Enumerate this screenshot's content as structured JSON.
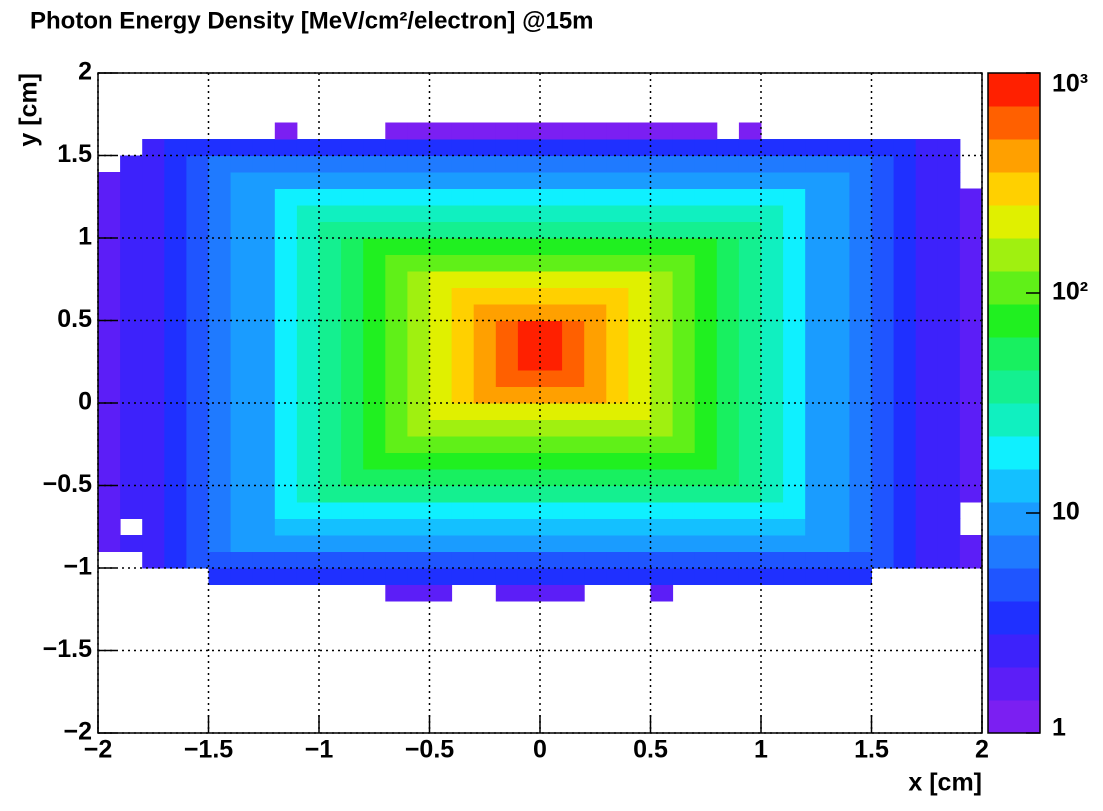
{
  "chart_data": {
    "type": "heatmap",
    "title": "Photon Energy Density [MeV/cm²/electron] @15m",
    "x_label": "x [cm]",
    "y_label": "y [cm]",
    "xlim": [
      -2,
      2
    ],
    "ylim": [
      -2,
      2
    ],
    "zlim": [
      1,
      1000
    ],
    "zlog": true,
    "grid": true,
    "xticks": [
      {
        "value": -2,
        "label": "−2"
      },
      {
        "value": -1.5,
        "label": "−1.5"
      },
      {
        "value": -1,
        "label": "−1"
      },
      {
        "value": -0.5,
        "label": "−0.5"
      },
      0,
      0.5,
      1,
      1.5,
      2
    ],
    "yticks": [
      {
        "value": -2,
        "label": "−2"
      },
      {
        "value": -1.5,
        "label": "−1.5"
      },
      {
        "value": -1,
        "label": "−1"
      },
      {
        "value": -0.5,
        "label": "−0.5"
      },
      0,
      0.5,
      1,
      1.5,
      2
    ],
    "zticks": [
      1,
      10,
      {
        "value": 100,
        "label": "10²"
      },
      {
        "value": 1000,
        "label": "10³"
      }
    ],
    "palette": [
      "#7b1ff2",
      "#5c1ef7",
      "#3d22fb",
      "#1f30ff",
      "#1f55ff",
      "#1f7aff",
      "#1a9cff",
      "#14c0ff",
      "#0ff0ff",
      "#10f0c0",
      "#14f090",
      "#18f060",
      "#20f020",
      "#60f018",
      "#a0f010",
      "#e0f000",
      "#ffd000",
      "#ffa000",
      "#ff6000",
      "#ff2000"
    ],
    "xbins": [
      -2,
      -1.9,
      -1.8,
      -1.7,
      -1.6,
      -1.5,
      -1.4,
      -1.3,
      -1.2,
      -1.1,
      -1,
      -0.9,
      -0.8,
      -0.7,
      -0.6,
      -0.5,
      -0.4,
      -0.3,
      -0.2,
      -0.1,
      0,
      0.1,
      0.2,
      0.3,
      0.4,
      0.5,
      0.6,
      0.7,
      0.8,
      0.9,
      1,
      1.1,
      1.2,
      1.3,
      1.4,
      1.5,
      1.6,
      1.7,
      1.8,
      1.9,
      2
    ],
    "ybins": [
      -1.2,
      -1.1,
      -1,
      -0.9,
      -0.8,
      -0.7,
      -0.6,
      -0.5,
      -0.4,
      -0.3,
      -0.2,
      -0.1,
      0,
      0.1,
      0.2,
      0.3,
      0.4,
      0.5,
      0.6,
      0.7,
      0.8,
      0.9,
      1,
      1.1,
      1.2,
      1.3,
      1.4,
      1.5,
      1.6,
      1.7
    ],
    "z": [
      [
        null,
        null,
        null,
        null,
        null,
        null,
        null,
        null,
        null,
        null,
        null,
        null,
        null,
        1.5,
        1.5,
        1.5,
        null,
        null,
        1.5,
        1.5,
        1.5,
        1.5,
        null,
        null,
        null,
        1.5,
        null,
        null,
        null,
        null,
        null,
        null,
        null,
        null,
        null,
        null,
        null,
        null,
        null,
        null
      ],
      [
        null,
        null,
        null,
        null,
        null,
        3,
        3,
        3,
        3,
        3,
        3,
        3,
        3,
        3,
        3,
        3,
        3,
        3,
        3,
        3,
        3,
        3,
        3,
        3,
        3,
        3,
        3,
        3,
        3,
        3,
        3,
        3,
        3,
        3,
        3,
        null,
        null,
        null,
        null,
        null
      ],
      [
        null,
        null,
        2.5,
        3,
        4,
        5,
        5,
        5,
        5,
        5,
        5,
        5,
        5,
        5,
        5,
        5,
        5,
        5,
        5,
        5,
        5,
        5,
        5,
        5,
        5,
        5,
        5,
        5,
        5,
        5,
        5,
        5,
        5,
        5,
        5,
        4,
        3,
        2.5,
        2,
        1.5
      ],
      [
        1.5,
        2,
        2.5,
        3,
        4,
        6,
        8,
        9,
        9,
        9,
        9,
        9,
        9,
        9,
        9,
        9,
        9,
        9,
        9,
        9,
        9,
        9,
        9,
        9,
        9,
        9,
        9,
        9,
        9,
        9,
        9,
        9,
        9,
        8,
        6,
        4,
        3,
        2.5,
        2,
        1.5
      ],
      [
        1.5,
        null,
        2.5,
        3,
        4,
        6,
        8,
        11,
        14,
        14,
        14,
        14,
        14,
        14,
        14,
        14,
        14,
        14,
        14,
        14,
        14,
        14,
        14,
        14,
        14,
        14,
        14,
        14,
        14,
        14,
        14,
        14,
        11,
        8,
        6,
        4,
        3,
        2.5,
        2,
        null
      ],
      [
        1.5,
        2,
        2.5,
        3,
        4,
        6,
        8,
        11,
        16,
        22,
        22,
        22,
        22,
        22,
        22,
        22,
        22,
        22,
        22,
        22,
        22,
        22,
        22,
        22,
        22,
        22,
        22,
        22,
        22,
        22,
        22,
        16,
        11,
        8,
        6,
        4,
        3,
        2.5,
        2,
        null
      ],
      [
        1.5,
        2,
        2.5,
        3,
        4,
        6,
        8,
        11,
        16,
        23,
        33,
        34,
        34,
        34,
        34,
        34,
        34,
        34,
        34,
        34,
        34,
        34,
        34,
        34,
        34,
        34,
        34,
        34,
        34,
        33,
        23,
        16,
        11,
        8,
        6,
        4,
        3,
        2.5,
        2,
        1.5
      ],
      [
        1.5,
        2,
        2.5,
        3,
        4,
        6,
        8,
        11,
        16,
        23,
        33,
        48,
        50,
        50,
        50,
        50,
        50,
        50,
        50,
        50,
        50,
        50,
        50,
        50,
        50,
        50,
        50,
        50,
        48,
        33,
        23,
        16,
        11,
        8,
        6,
        4,
        3,
        2.5,
        2,
        1.5
      ],
      [
        1.5,
        2,
        2.5,
        3,
        4,
        6,
        8,
        11,
        16,
        23,
        33,
        48,
        70,
        75,
        75,
        75,
        75,
        75,
        75,
        75,
        75,
        75,
        75,
        75,
        75,
        75,
        75,
        70,
        48,
        33,
        23,
        16,
        11,
        8,
        6,
        4,
        3,
        2.5,
        2,
        1.5
      ],
      [
        1.5,
        2,
        2.5,
        3,
        4,
        6,
        8,
        11,
        16,
        23,
        33,
        48,
        70,
        100,
        110,
        110,
        110,
        110,
        110,
        110,
        110,
        110,
        110,
        110,
        110,
        110,
        100,
        70,
        48,
        33,
        23,
        16,
        11,
        8,
        6,
        4,
        3,
        2.5,
        2,
        1.5
      ],
      [
        1.5,
        2,
        2.5,
        3,
        4,
        6,
        8,
        11,
        16,
        23,
        33,
        48,
        70,
        100,
        150,
        160,
        160,
        160,
        160,
        160,
        160,
        160,
        160,
        160,
        160,
        150,
        100,
        70,
        48,
        33,
        23,
        16,
        11,
        8,
        6,
        4,
        3,
        2.5,
        2,
        1.5
      ],
      [
        1.5,
        2,
        2.5,
        3,
        4,
        6,
        8,
        11,
        16,
        23,
        33,
        48,
        70,
        100,
        150,
        220,
        250,
        250,
        250,
        250,
        250,
        250,
        250,
        250,
        220,
        150,
        100,
        70,
        48,
        33,
        23,
        16,
        11,
        8,
        6,
        4,
        3,
        2.5,
        2,
        1.5
      ],
      [
        1.5,
        2,
        2.5,
        3,
        4,
        6,
        8,
        11,
        16,
        23,
        33,
        48,
        70,
        100,
        150,
        220,
        330,
        400,
        400,
        400,
        400,
        400,
        400,
        330,
        220,
        150,
        100,
        70,
        48,
        33,
        23,
        16,
        11,
        8,
        6,
        4,
        3,
        2.5,
        2,
        1.5
      ],
      [
        1.5,
        2,
        2.5,
        3,
        4,
        6,
        8,
        11,
        16,
        23,
        33,
        48,
        70,
        100,
        150,
        220,
        330,
        500,
        600,
        600,
        600,
        600,
        500,
        330,
        220,
        150,
        100,
        70,
        48,
        33,
        23,
        16,
        11,
        8,
        6,
        4,
        3,
        2.5,
        2,
        1.5
      ],
      [
        1.5,
        2,
        2.5,
        3,
        4,
        6,
        8,
        11,
        16,
        23,
        33,
        48,
        70,
        100,
        150,
        220,
        330,
        500,
        700,
        800,
        800,
        700,
        500,
        330,
        220,
        150,
        100,
        70,
        48,
        33,
        23,
        16,
        11,
        8,
        6,
        4,
        3,
        2.5,
        2,
        1.5
      ],
      [
        1.5,
        2,
        2.5,
        3,
        4,
        6,
        8,
        11,
        16,
        23,
        33,
        48,
        70,
        100,
        150,
        220,
        330,
        500,
        700,
        900,
        900,
        700,
        500,
        330,
        220,
        150,
        100,
        70,
        48,
        33,
        23,
        16,
        11,
        8,
        6,
        4,
        3,
        2.5,
        2,
        1.5
      ],
      [
        1.5,
        2,
        2.5,
        3,
        4,
        6,
        8,
        11,
        16,
        23,
        33,
        48,
        70,
        100,
        150,
        220,
        330,
        500,
        700,
        750,
        750,
        700,
        500,
        330,
        220,
        150,
        100,
        70,
        48,
        33,
        23,
        16,
        11,
        8,
        6,
        4,
        3,
        2.5,
        2,
        1.5
      ],
      [
        1.5,
        2,
        2.5,
        3,
        4,
        6,
        8,
        11,
        16,
        23,
        33,
        48,
        70,
        100,
        150,
        220,
        330,
        500,
        500,
        500,
        500,
        500,
        500,
        330,
        220,
        150,
        100,
        70,
        48,
        33,
        23,
        16,
        11,
        8,
        6,
        4,
        3,
        2.5,
        2,
        1.5
      ],
      [
        1.5,
        2,
        2.5,
        3,
        4,
        6,
        8,
        11,
        16,
        23,
        33,
        48,
        70,
        100,
        150,
        220,
        300,
        300,
        300,
        300,
        300,
        300,
        300,
        300,
        220,
        150,
        100,
        70,
        48,
        33,
        23,
        16,
        11,
        8,
        6,
        4,
        3,
        2.5,
        2,
        1.5
      ],
      [
        1.5,
        2,
        2.5,
        3,
        4,
        6,
        8,
        11,
        16,
        23,
        33,
        48,
        70,
        100,
        150,
        180,
        180,
        180,
        180,
        180,
        180,
        180,
        180,
        180,
        180,
        150,
        100,
        70,
        48,
        33,
        23,
        16,
        11,
        8,
        6,
        4,
        3,
        2.5,
        2,
        1.5
      ],
      [
        1.5,
        2,
        2.5,
        3,
        4,
        6,
        8,
        11,
        16,
        23,
        33,
        48,
        70,
        100,
        110,
        110,
        110,
        110,
        110,
        110,
        110,
        110,
        110,
        110,
        110,
        110,
        100,
        70,
        48,
        33,
        23,
        16,
        11,
        8,
        6,
        4,
        3,
        2.5,
        2,
        1.5
      ],
      [
        1.5,
        2,
        2.5,
        3,
        4,
        6,
        8,
        11,
        16,
        23,
        33,
        48,
        65,
        65,
        65,
        65,
        65,
        65,
        65,
        65,
        65,
        65,
        65,
        65,
        65,
        65,
        65,
        65,
        48,
        33,
        23,
        16,
        11,
        8,
        6,
        4,
        3,
        2.5,
        2,
        1.5
      ],
      [
        1.5,
        2,
        2.5,
        3,
        4,
        6,
        8,
        11,
        16,
        23,
        33,
        40,
        40,
        40,
        40,
        40,
        40,
        40,
        40,
        40,
        40,
        40,
        40,
        40,
        40,
        40,
        40,
        40,
        40,
        33,
        23,
        16,
        11,
        8,
        6,
        4,
        3,
        2.5,
        2,
        1.5
      ],
      [
        1.5,
        2,
        2.5,
        3,
        4,
        6,
        8,
        11,
        16,
        23,
        26,
        26,
        26,
        26,
        26,
        26,
        26,
        26,
        26,
        26,
        26,
        26,
        26,
        26,
        26,
        26,
        26,
        26,
        26,
        26,
        23,
        16,
        11,
        8,
        6,
        4,
        3,
        2.5,
        2,
        1.5
      ],
      [
        1.5,
        2,
        2.5,
        3,
        4,
        6,
        8,
        11,
        16,
        17,
        17,
        17,
        17,
        17,
        17,
        17,
        17,
        17,
        17,
        17,
        17,
        17,
        17,
        17,
        17,
        17,
        17,
        17,
        17,
        17,
        17,
        16,
        11,
        8,
        6,
        4,
        3,
        2.5,
        2,
        1.5
      ],
      [
        1.5,
        2,
        2.5,
        3,
        4,
        6,
        8,
        11,
        11,
        11,
        11,
        11,
        11,
        11,
        11,
        11,
        11,
        11,
        11,
        11,
        11,
        11,
        11,
        11,
        11,
        11,
        11,
        11,
        11,
        11,
        11,
        11,
        11,
        8,
        6,
        4,
        3,
        2.5,
        2,
        null
      ],
      [
        null,
        2,
        2.5,
        3,
        4,
        6,
        7,
        7,
        7,
        7,
        7,
        7,
        7,
        7,
        7,
        7,
        7,
        7,
        7,
        7,
        7,
        7,
        7,
        7,
        7,
        7,
        7,
        7,
        7,
        7,
        7,
        7,
        7,
        7,
        6,
        4,
        3,
        2.5,
        2,
        null
      ],
      [
        null,
        null,
        2.5,
        3,
        3,
        3,
        3,
        3,
        3,
        3,
        3,
        3,
        3,
        3,
        3,
        3,
        3,
        3,
        3,
        3,
        3,
        3,
        3,
        3,
        3,
        3,
        3,
        3,
        3,
        3,
        3,
        3,
        3,
        3,
        3,
        3,
        3,
        2.5,
        2,
        null
      ],
      [
        null,
        null,
        null,
        null,
        null,
        null,
        null,
        null,
        1.2,
        null,
        null,
        null,
        null,
        1.2,
        1.2,
        1.2,
        1.2,
        1.2,
        1.2,
        1.2,
        1.2,
        1.2,
        1.2,
        1.2,
        1.2,
        1.2,
        1.2,
        1.2,
        null,
        1.2,
        null,
        null,
        null,
        null,
        null,
        null,
        null,
        null,
        null,
        null
      ]
    ]
  }
}
